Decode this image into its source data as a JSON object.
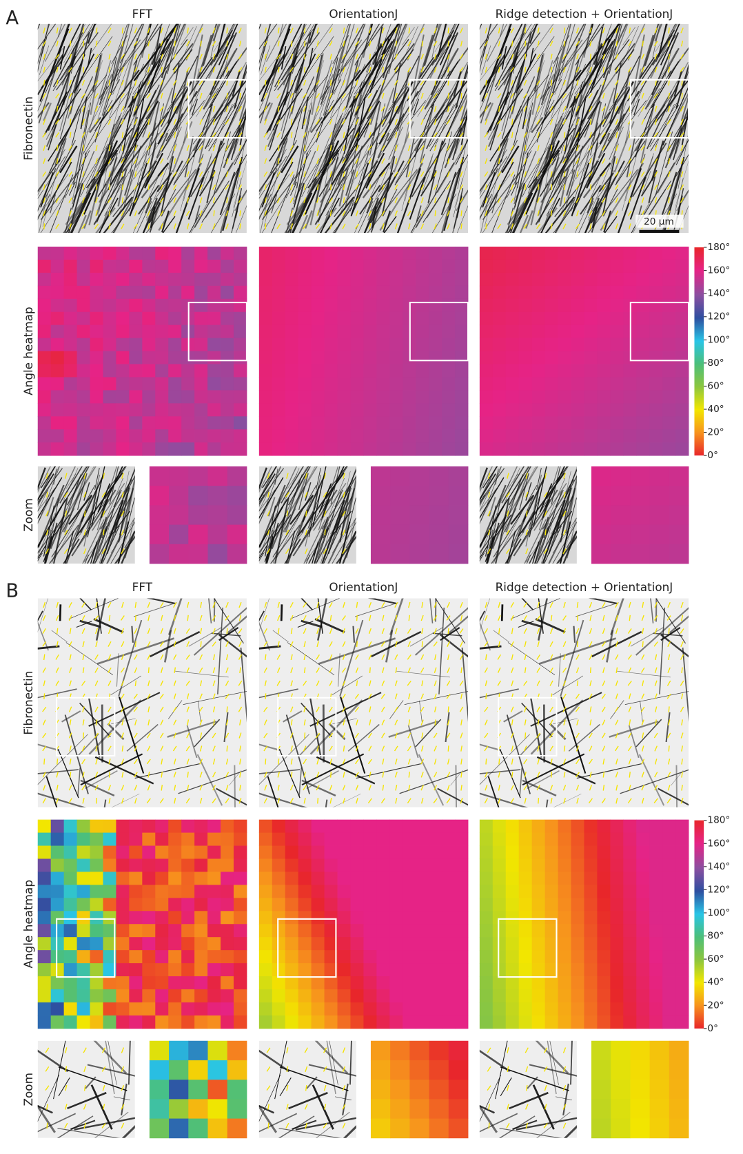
{
  "panels": [
    {
      "label": "A",
      "columns": [
        "FFT",
        "OrientationJ",
        "Ridge detection + OrientationJ"
      ],
      "rows": [
        "Fibronectin",
        "Angle heatmap",
        "Zoom"
      ],
      "scale_bar": "20 µm",
      "colorbar": [
        "0°",
        "20°",
        "40°",
        "60°",
        "80°",
        "100°",
        "120°",
        "140°",
        "160°",
        "180°"
      ]
    },
    {
      "label": "B",
      "columns": [
        "FFT",
        "OrientationJ",
        "Ridge detection + OrientationJ"
      ],
      "rows": [
        "Fibronectin",
        "Angle heatmap",
        "Zoom"
      ],
      "colorbar": [
        "0°",
        "20°",
        "40°",
        "60°",
        "80°",
        "100°",
        "120°",
        "140°",
        "160°",
        "180°"
      ]
    }
  ]
}
